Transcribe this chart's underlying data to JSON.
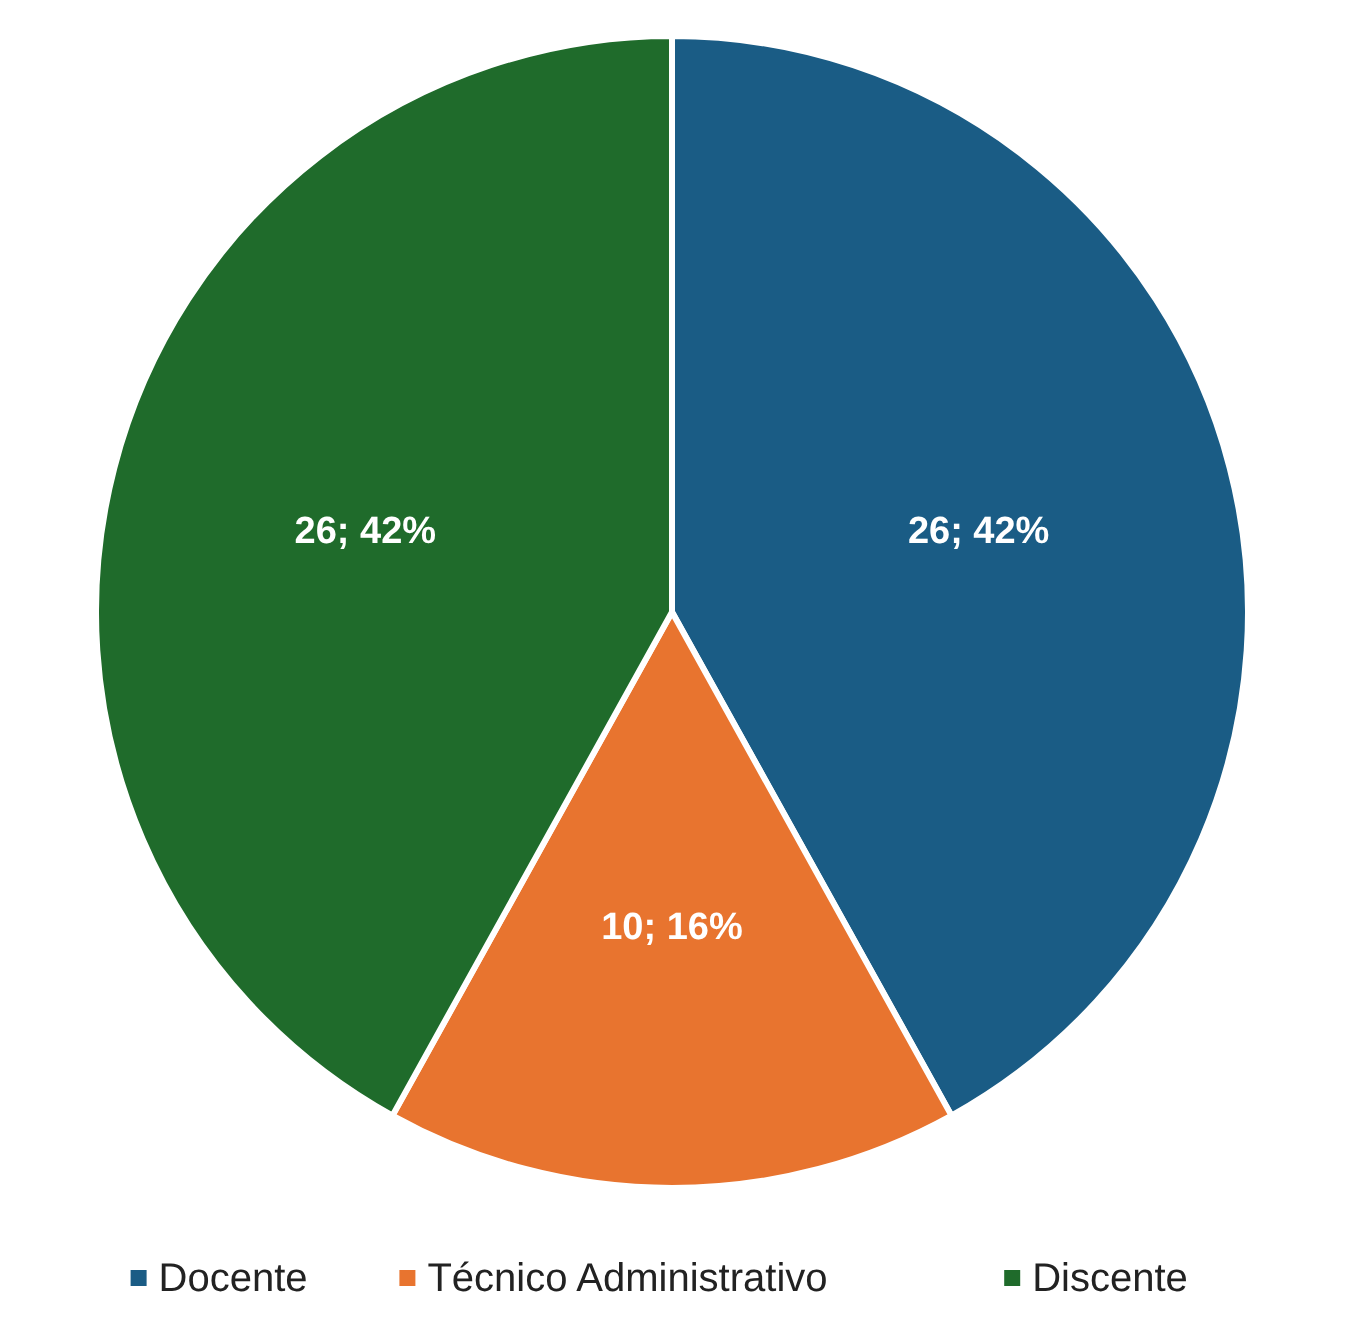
{
  "chart_data": {
    "type": "pie",
    "categories": [
      "Docente",
      "Técnico Administrativo",
      "Discente"
    ],
    "values": [
      26,
      10,
      26
    ],
    "colors": [
      "#1a5c85",
      "#e8742f",
      "#1f6b2b"
    ],
    "value_labels": [
      "26; 42%",
      "10; 16%",
      "26; 42%"
    ],
    "legend": "bottom"
  }
}
